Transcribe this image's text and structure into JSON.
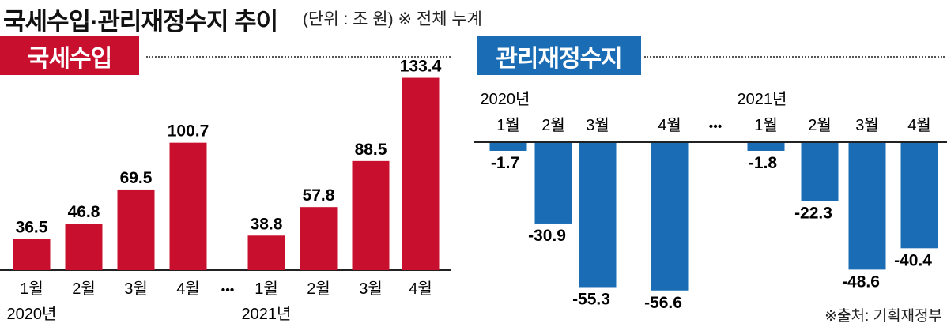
{
  "title": "국세수입·관리재정수지 추이",
  "unit_note": "(단위 : 조 원) ※ 전체 누계",
  "source": "※출처: 기획재정부",
  "colors": {
    "revenue": "#c8102e",
    "balance": "#1a6db5"
  },
  "chart_data": [
    {
      "type": "bar",
      "title": "국세수입",
      "categories": [
        "1월",
        "2월",
        "3월",
        "4월",
        "1월",
        "2월",
        "3월",
        "4월"
      ],
      "year_labels": [
        "2020년",
        "2021년"
      ],
      "gap_marker": "•••",
      "values": [
        36.5,
        46.8,
        69.5,
        100.7,
        38.8,
        57.8,
        88.5,
        133.4
      ],
      "value_labels": [
        "36.5",
        "46.8",
        "69.5",
        "100.7",
        "38.8",
        "57.8",
        "88.5",
        "133.4"
      ]
    },
    {
      "type": "bar",
      "title": "관리재정수지",
      "categories": [
        "1월",
        "2월",
        "3월",
        "4월",
        "1월",
        "2월",
        "3월",
        "4월"
      ],
      "year_labels": [
        "2020년",
        "2021년"
      ],
      "gap_marker": "•••",
      "values": [
        -1.7,
        -30.9,
        -55.3,
        -56.6,
        -1.8,
        -22.3,
        -48.6,
        -40.4
      ],
      "value_labels": [
        "-1.7",
        "-30.9",
        "-55.3",
        "-56.6",
        "-1.8",
        "-22.3",
        "-48.6",
        "-40.4"
      ]
    }
  ]
}
